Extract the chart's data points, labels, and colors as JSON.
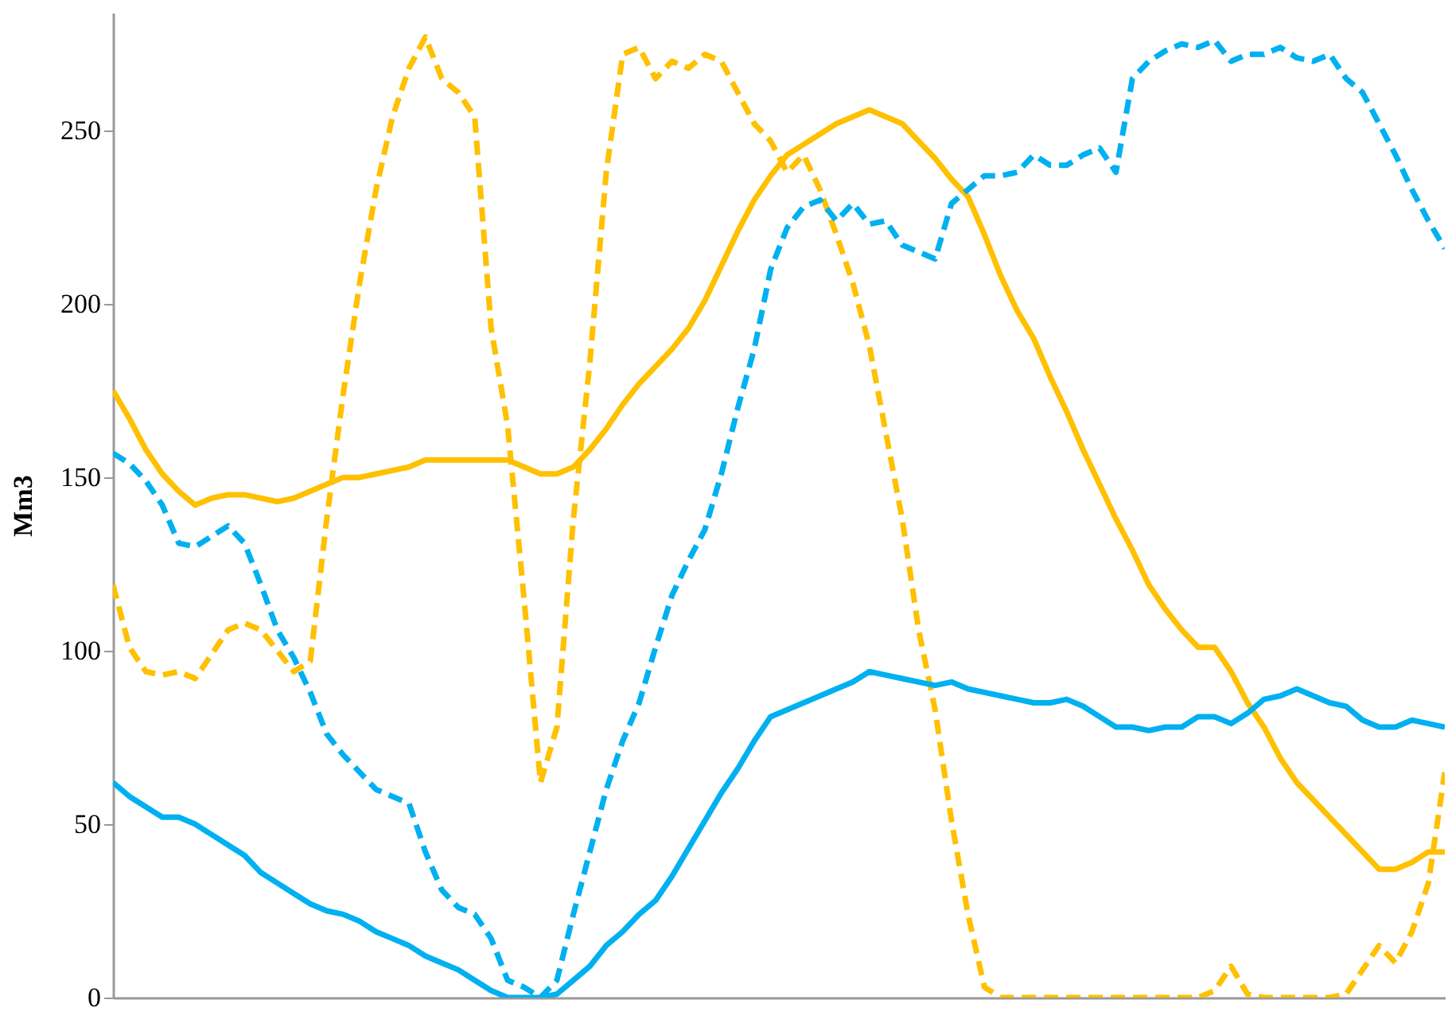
{
  "chart_data": {
    "type": "line",
    "ylabel": "Mm3",
    "categories": [
      null,
      null,
      null,
      null,
      null,
      null,
      null,
      null,
      null,
      null,
      null,
      null,
      null,
      null,
      null,
      null,
      null,
      null,
      null,
      null,
      null,
      null,
      null,
      null,
      null,
      null,
      null,
      null,
      null,
      null,
      null,
      null,
      null,
      null,
      null,
      null,
      null,
      null,
      null,
      null,
      null,
      null,
      null,
      null,
      null,
      null,
      null,
      null,
      null,
      null,
      null,
      null,
      null,
      null,
      null,
      null,
      null,
      null,
      null,
      null,
      null,
      null,
      null,
      null,
      null,
      null,
      null,
      null,
      null,
      null,
      null,
      null,
      null,
      null,
      null,
      null,
      null,
      null,
      null,
      null,
      null,
      null
    ],
    "series": [
      {
        "color": "#ffc000",
        "line_style": "solid",
        "values": [
          175,
          167,
          158,
          151,
          146,
          142,
          144,
          145,
          145,
          144,
          143,
          144,
          146,
          148,
          150,
          150,
          151,
          152,
          153,
          155,
          155,
          155,
          155,
          155,
          155,
          153,
          151,
          151,
          153,
          158,
          164,
          171,
          177,
          182,
          187,
          193,
          201,
          211,
          221,
          230,
          237,
          243,
          246,
          249,
          252,
          254,
          256,
          254,
          252,
          247,
          242,
          236,
          231,
          220,
          208,
          198,
          190,
          179,
          169,
          158,
          148,
          138,
          129,
          119,
          112,
          106,
          101,
          101,
          94,
          85,
          78,
          69,
          62,
          57,
          52,
          47,
          42,
          37,
          37,
          39,
          42,
          42
        ]
      },
      {
        "color": "#ffc000",
        "line_style": "dashed",
        "values": [
          119,
          101,
          94,
          93,
          94,
          92,
          99,
          106,
          108,
          106,
          100,
          94,
          97,
          138,
          174,
          206,
          233,
          254,
          268,
          277,
          265,
          261,
          254,
          193,
          165,
          115,
          62,
          78,
          138,
          183,
          238,
          272,
          274,
          265,
          270,
          268,
          272,
          270,
          261,
          252,
          247,
          238,
          243,
          233,
          220,
          206,
          188,
          163,
          138,
          106,
          83,
          51,
          24,
          3,
          0,
          0,
          0,
          0,
          0,
          0,
          0,
          0,
          0,
          0,
          0,
          0,
          0,
          2,
          9,
          1,
          0,
          0,
          0,
          0,
          0,
          1,
          8,
          15,
          10,
          19,
          33,
          65
        ]
      },
      {
        "color": "#00b0f0",
        "line_style": "solid",
        "values": [
          62,
          58,
          55,
          52,
          52,
          50,
          47,
          44,
          41,
          36,
          33,
          30,
          27,
          25,
          24,
          22,
          19,
          17,
          15,
          12,
          10,
          8,
          5,
          2,
          0,
          0,
          0,
          1,
          5,
          9,
          15,
          19,
          24,
          28,
          35,
          43,
          51,
          59,
          66,
          74,
          81,
          83,
          85,
          87,
          89,
          91,
          94,
          93,
          92,
          91,
          90,
          91,
          89,
          88,
          87,
          86,
          85,
          85,
          86,
          84,
          81,
          78,
          78,
          77,
          78,
          78,
          81,
          81,
          79,
          82,
          86,
          87,
          89,
          87,
          85,
          84,
          80,
          78,
          78,
          80,
          79,
          78
        ]
      },
      {
        "color": "#00b0f0",
        "line_style": "dashed",
        "values": [
          157,
          154,
          149,
          142,
          131,
          130,
          133,
          136,
          131,
          119,
          106,
          98,
          88,
          76,
          70,
          65,
          60,
          58,
          56,
          42,
          31,
          26,
          24,
          17,
          5,
          3,
          0,
          5,
          24,
          42,
          60,
          74,
          85,
          101,
          116,
          126,
          135,
          151,
          170,
          187,
          210,
          222,
          228,
          230,
          224,
          229,
          223,
          224,
          217,
          215,
          213,
          229,
          233,
          237,
          237,
          238,
          243,
          240,
          240,
          243,
          245,
          238,
          265,
          270,
          273,
          275,
          274,
          276,
          270,
          272,
          272,
          274,
          271,
          270,
          272,
          265,
          261,
          252,
          243,
          233,
          224,
          216
        ]
      }
    ],
    "ylim": [
      0,
      284
    ],
    "yticks": [
      0,
      50,
      100,
      150,
      200,
      250
    ],
    "tick_labels": "y",
    "grid": false,
    "marker": "none"
  }
}
